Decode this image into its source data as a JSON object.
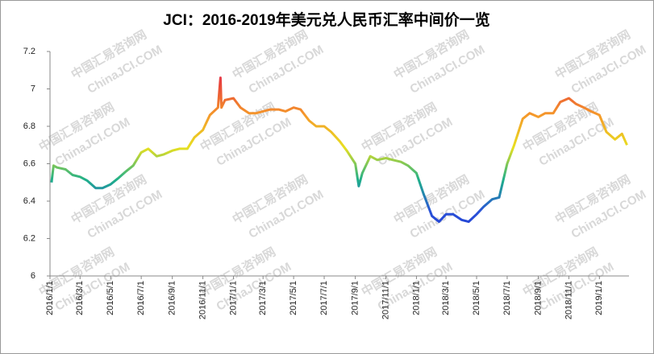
{
  "chart_data": {
    "type": "line",
    "title": "JCI：2016-2019年美元兑人民币汇率中间价一览",
    "watermark": [
      "中国汇易咨询网",
      "ChinaJCI.COM"
    ],
    "x": [
      "2016/1/4",
      "2016/1/8",
      "2016/1/15",
      "2016/2/1",
      "2016/2/15",
      "2016/3/1",
      "2016/3/15",
      "2016/4/1",
      "2016/4/15",
      "2016/5/1",
      "2016/5/15",
      "2016/6/1",
      "2016/6/15",
      "2016/7/1",
      "2016/7/15",
      "2016/8/1",
      "2016/8/15",
      "2016/9/1",
      "2016/9/15",
      "2016/10/1",
      "2016/10/15",
      "2016/11/1",
      "2016/11/15",
      "2016/12/1",
      "2016/12/6",
      "2016/12/8",
      "2016/12/15",
      "2017/1/1",
      "2017/1/15",
      "2017/2/1",
      "2017/2/15",
      "2017/3/1",
      "2017/3/15",
      "2017/4/1",
      "2017/4/15",
      "2017/5/1",
      "2017/5/15",
      "2017/6/1",
      "2017/6/15",
      "2017/7/1",
      "2017/7/15",
      "2017/8/1",
      "2017/8/15",
      "2017/9/1",
      "2017/9/8",
      "2017/9/15",
      "2017/10/1",
      "2017/10/15",
      "2017/11/1",
      "2017/11/15",
      "2017/12/1",
      "2017/12/15",
      "2018/1/1",
      "2018/1/15",
      "2018/2/1",
      "2018/2/15",
      "2018/3/1",
      "2018/3/15",
      "2018/4/1",
      "2018/4/15",
      "2018/5/1",
      "2018/5/15",
      "2018/6/1",
      "2018/6/15",
      "2018/7/1",
      "2018/7/15",
      "2018/8/1",
      "2018/8/15",
      "2018/9/1",
      "2018/9/15",
      "2018/10/1",
      "2018/10/15",
      "2018/11/1",
      "2018/11/15",
      "2018/12/1",
      "2018/12/15",
      "2019/1/1",
      "2019/1/15",
      "2019/2/1",
      "2019/2/15",
      "2019/2/25"
    ],
    "values": [
      6.5,
      6.59,
      6.58,
      6.57,
      6.54,
      6.53,
      6.51,
      6.47,
      6.47,
      6.49,
      6.52,
      6.56,
      6.59,
      6.66,
      6.68,
      6.64,
      6.65,
      6.67,
      6.68,
      6.68,
      6.74,
      6.78,
      6.86,
      6.9,
      7.06,
      6.9,
      6.94,
      6.95,
      6.9,
      6.87,
      6.87,
      6.88,
      6.89,
      6.89,
      6.88,
      6.9,
      6.89,
      6.83,
      6.8,
      6.8,
      6.77,
      6.72,
      6.67,
      6.6,
      6.48,
      6.55,
      6.64,
      6.62,
      6.63,
      6.62,
      6.61,
      6.59,
      6.55,
      6.44,
      6.32,
      6.29,
      6.33,
      6.33,
      6.3,
      6.29,
      6.33,
      6.37,
      6.41,
      6.42,
      6.6,
      6.7,
      6.84,
      6.87,
      6.85,
      6.87,
      6.87,
      6.93,
      6.95,
      6.92,
      6.9,
      6.88,
      6.86,
      6.77,
      6.73,
      6.76,
      6.7
    ],
    "colors": [
      "#1a2fd0",
      "#1a2fd0",
      "#2a52d8",
      "#1fb08a",
      "#e8e020",
      "#f59a2a",
      "#e8443a",
      "#e01a8a"
    ],
    "xlim": [
      "2016/1/1",
      "2019/3/1"
    ],
    "xticks": [
      "2016/1/1",
      "2016/3/1",
      "2016/5/1",
      "2016/7/1",
      "2016/9/1",
      "2016/11/1",
      "2017/1/1",
      "2017/3/1",
      "2017/5/1",
      "2017/7/1",
      "2017/9/1",
      "2017/11/1",
      "2018/1/1",
      "2018/3/1",
      "2018/5/1",
      "2018/7/1",
      "2018/9/1",
      "2018/11/1",
      "2019/1/1"
    ],
    "ylim": [
      6,
      7.2
    ],
    "yticks": [
      6,
      6.2,
      6.4,
      6.6,
      6.8,
      7,
      7.2
    ]
  }
}
